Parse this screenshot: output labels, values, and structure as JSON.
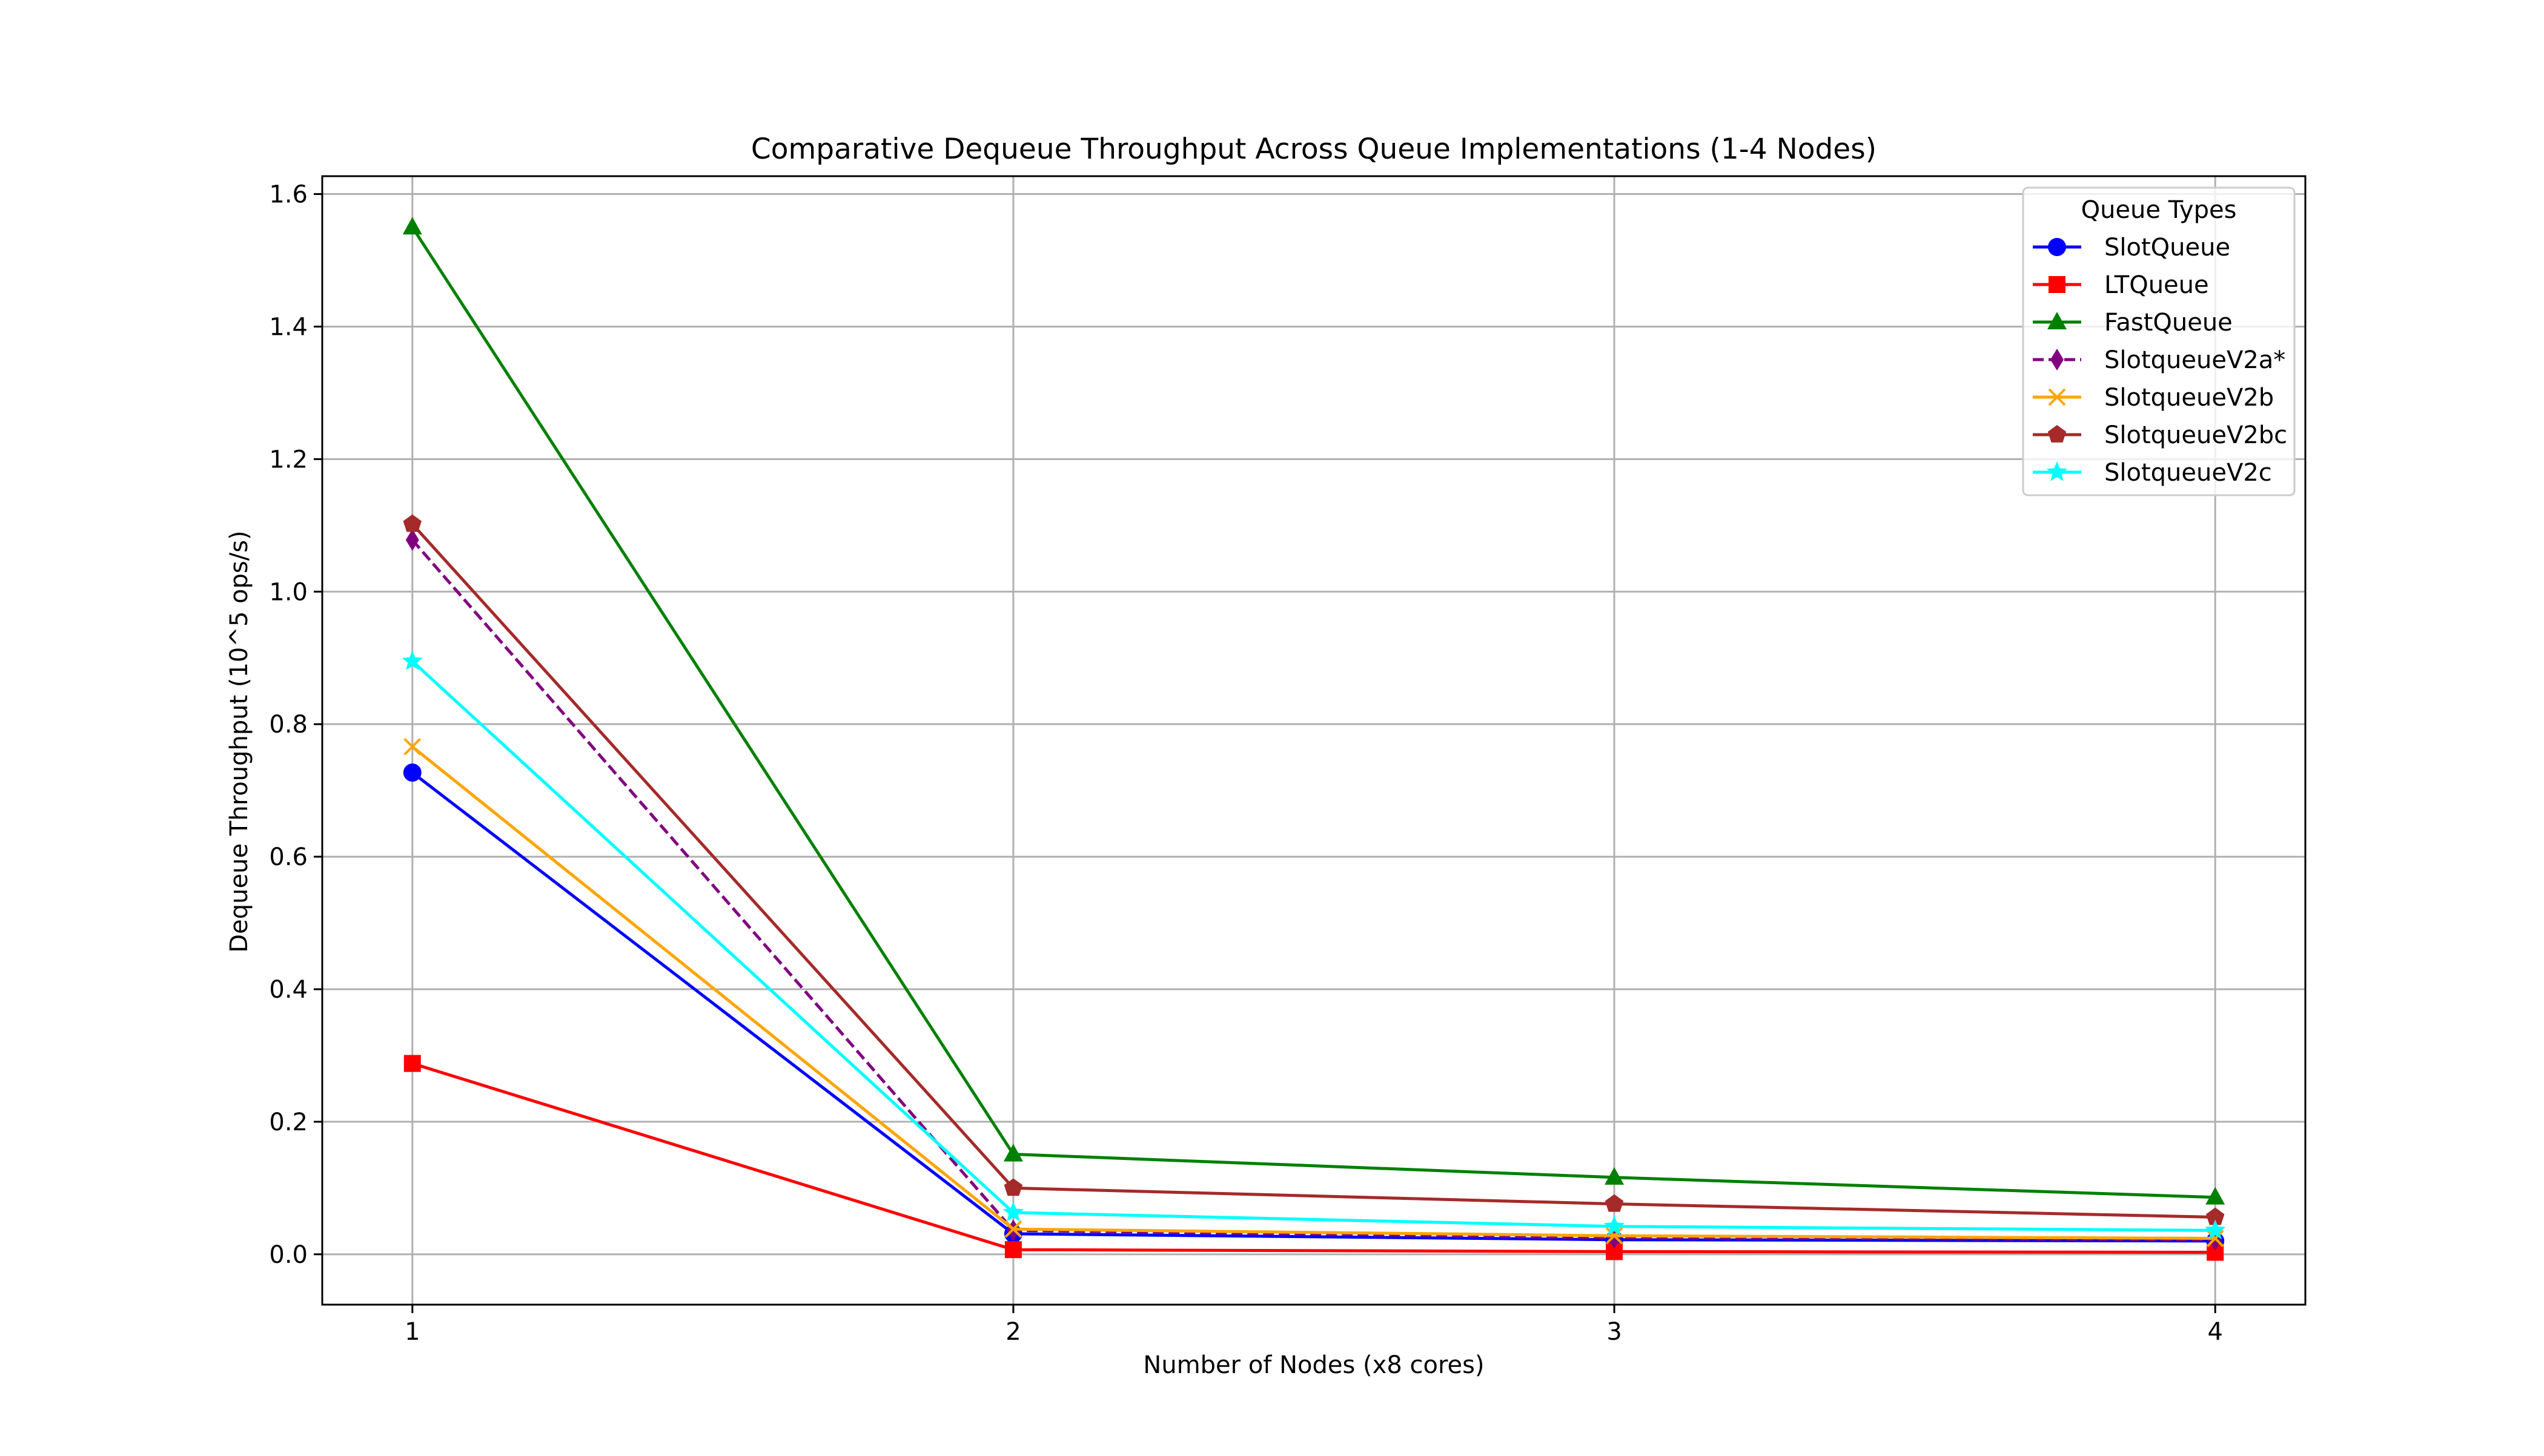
{
  "chart_data": {
    "type": "line",
    "title": "Comparative Dequeue Throughput Across Queue Implementations (1-4 Nodes)",
    "xlabel": "Number of Nodes (x8 cores)",
    "ylabel": "Dequeue Throughput (10^5 ops/s)",
    "x": [
      1,
      2,
      3,
      4
    ],
    "x_tick_labels": [
      "1",
      "2",
      "3",
      "4"
    ],
    "xlim": [
      0.85,
      4.15
    ],
    "ylim": [
      -0.076,
      1.627
    ],
    "y_ticks": [
      0.0,
      0.2,
      0.4,
      0.6,
      0.8,
      1.0,
      1.2,
      1.4,
      1.6
    ],
    "y_tick_labels": [
      "0.0",
      "0.2",
      "0.4",
      "0.6",
      "0.8",
      "1.0",
      "1.2",
      "1.4",
      "1.6"
    ],
    "grid": true,
    "legend": {
      "title": "Queue Types",
      "position": "top-right"
    },
    "series": [
      {
        "name": "SlotQueue",
        "values": [
          0.727,
          0.031,
          0.022,
          0.02
        ],
        "color": "#0000ff",
        "marker": "circle",
        "dashed": false
      },
      {
        "name": "LTQueue",
        "values": [
          0.288,
          0.007,
          0.004,
          0.003
        ],
        "color": "#ff0000",
        "marker": "square",
        "dashed": false
      },
      {
        "name": "FastQueue",
        "values": [
          1.55,
          0.151,
          0.116,
          0.086
        ],
        "color": "#008000",
        "marker": "triangle",
        "dashed": false
      },
      {
        "name": "SlotqueueV2a*",
        "values": [
          1.078,
          0.036,
          0.025,
          0.022
        ],
        "color": "#800080",
        "marker": "diamond",
        "dashed": true
      },
      {
        "name": "SlotqueueV2b",
        "values": [
          0.766,
          0.038,
          0.028,
          0.024
        ],
        "color": "#ffa500",
        "marker": "x",
        "dashed": false
      },
      {
        "name": "SlotqueueV2bc",
        "values": [
          1.102,
          0.1,
          0.076,
          0.056
        ],
        "color": "#a52a2a",
        "marker": "pentagon",
        "dashed": false
      },
      {
        "name": "SlotqueueV2c",
        "values": [
          0.895,
          0.063,
          0.042,
          0.036
        ],
        "color": "#00ffff",
        "marker": "star",
        "dashed": false
      }
    ]
  }
}
